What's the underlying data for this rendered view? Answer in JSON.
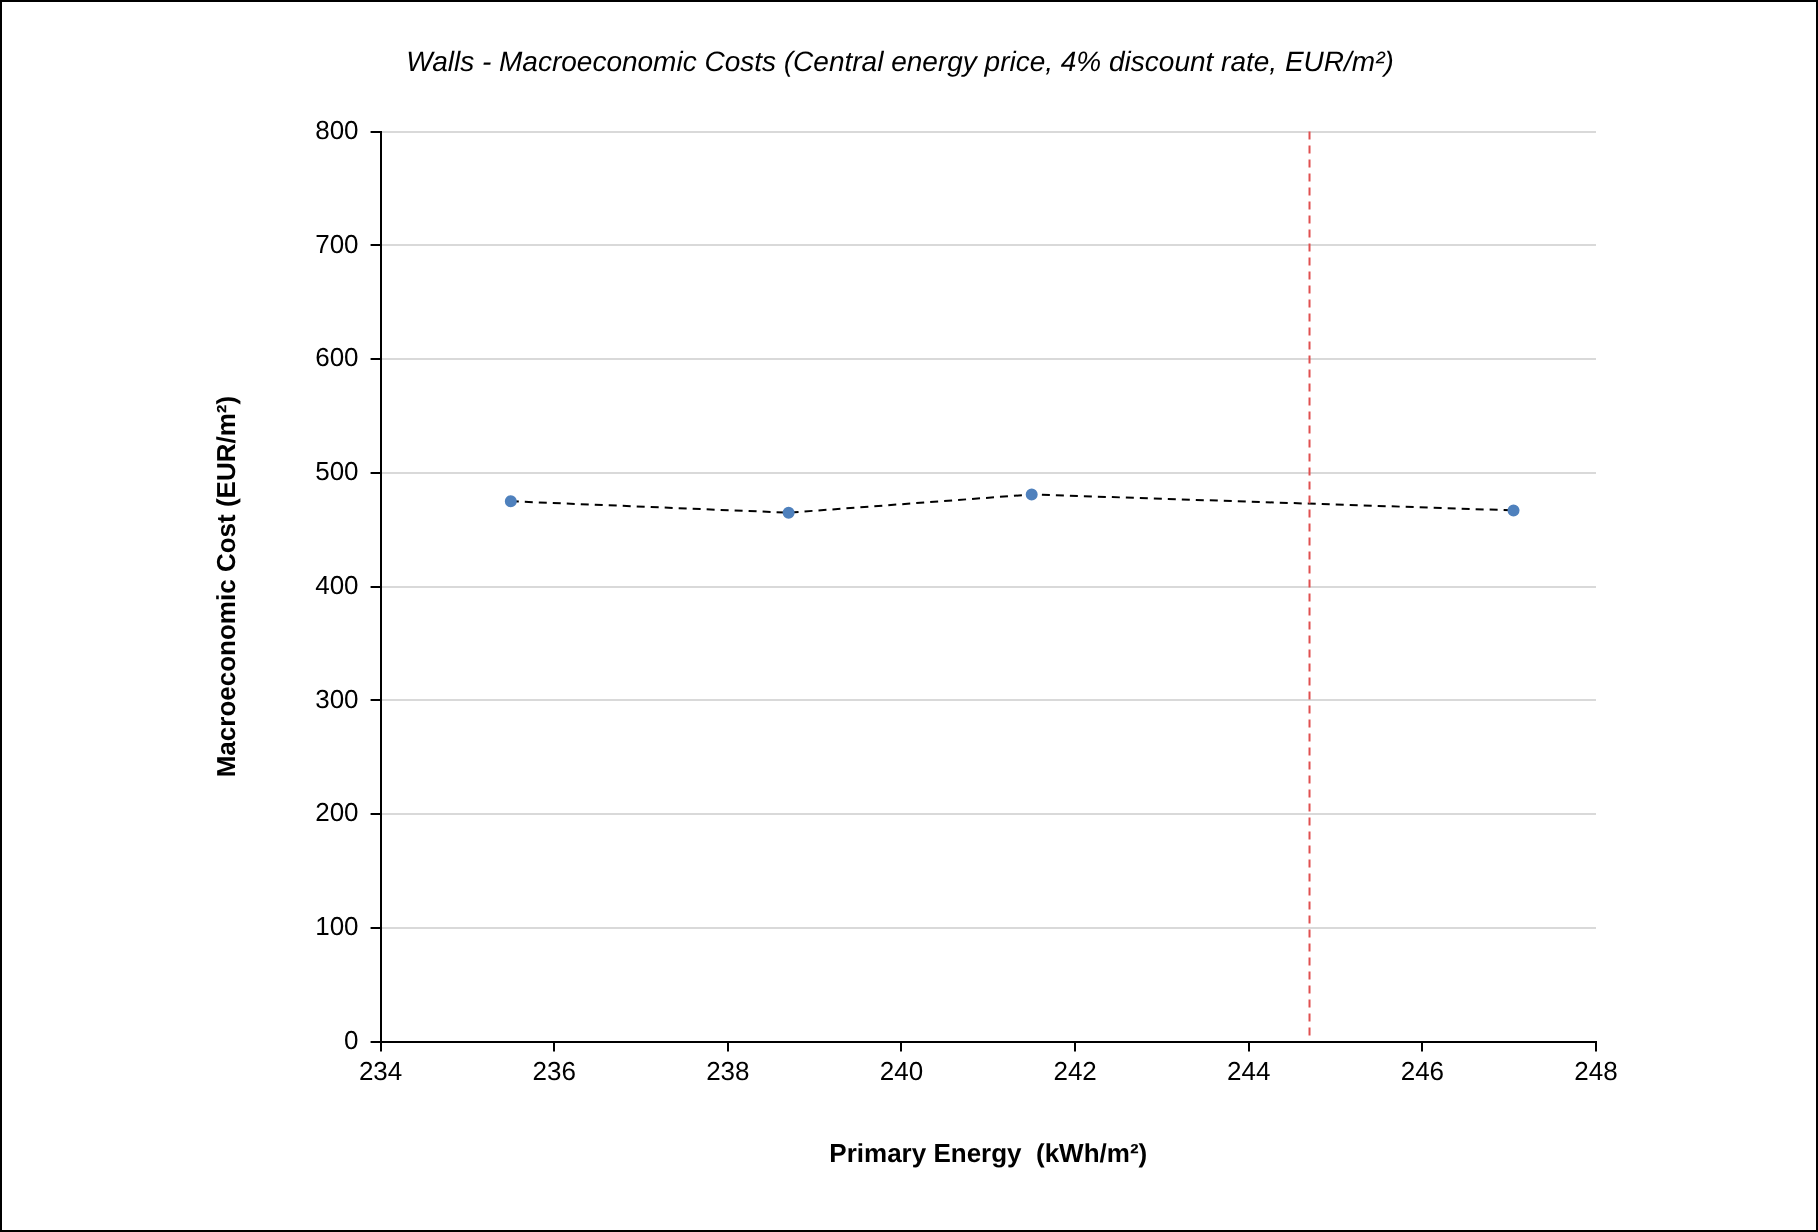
{
  "chart_data": {
    "type": "line",
    "title": "Walls - Macroeconomic Costs (Central energy price, 4% discount rate, EUR/m²)",
    "xlabel": "Primary Energy  (kWh/m²)",
    "ylabel": "Macroeconomic Cost (EUR/m²)",
    "series": [
      {
        "type": "line",
        "color": "#000000",
        "marker": "none",
        "x": [
          235.5,
          238.7,
          241.5,
          247.05
        ],
        "values": [
          475,
          465,
          481,
          467
        ]
      },
      {
        "type": "scatter",
        "color": "#4f81bd",
        "marker": "circle",
        "x": [
          235.5,
          238.7,
          241.5,
          247.05
        ],
        "values": [
          475,
          465,
          481,
          467
        ]
      }
    ],
    "xlim": [
      234,
      248
    ],
    "xticks": [
      234,
      236,
      238,
      240,
      242,
      244,
      246,
      248
    ],
    "ylim": [
      0,
      800
    ],
    "yticks": [
      0,
      100,
      200,
      300,
      400,
      500,
      600,
      700,
      800
    ],
    "ref_lines": [
      {
        "axis": "x",
        "value": 244.7,
        "color": "#e05050",
        "line_style": "dashed"
      }
    ],
    "grid": "y",
    "legend": false,
    "line_style": "dashed"
  }
}
